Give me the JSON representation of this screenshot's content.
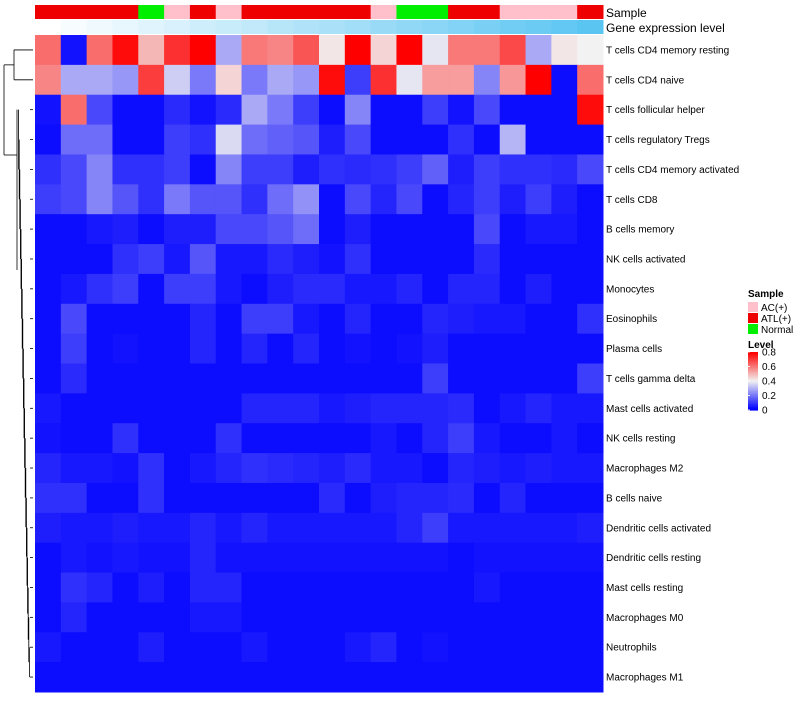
{
  "chart_data": {
    "type": "heatmap",
    "title": "",
    "annotation_labels": {
      "sample": "Sample",
      "expression": "Gene expression level"
    },
    "sample_groups": [
      "ATL(+)",
      "ATL(+)",
      "ATL(+)",
      "ATL(+)",
      "Normal",
      "AC(+)",
      "ATL(+)",
      "AC(+)",
      "ATL(+)",
      "ATL(+)",
      "ATL(+)",
      "ATL(+)",
      "ATL(+)",
      "AC(+)",
      "Normal",
      "Normal",
      "ATL(+)",
      "ATL(+)",
      "AC(+)",
      "AC(+)",
      "AC(+)",
      "ATL(+)"
    ],
    "expression_levels": [
      0.0,
      0.05,
      0.1,
      0.14,
      0.19,
      0.24,
      0.29,
      0.33,
      0.38,
      0.43,
      0.48,
      0.52,
      0.57,
      0.62,
      0.67,
      0.71,
      0.76,
      0.81,
      0.86,
      0.9,
      0.95,
      1.0
    ],
    "rows": [
      "T cells CD4 memory resting",
      "T cells CD4 naive",
      "T cells follicular helper",
      "T cells regulatory  Tregs",
      "T cells CD4 memory activated",
      "T cells CD8",
      "B cells memory",
      "NK cells activated",
      "Monocytes",
      "Eosinophils",
      "Plasma cells",
      "T cells gamma delta",
      "Mast cells activated",
      "NK cells resting",
      "Macrophages M2",
      "B cells naive",
      "Dendritic cells activated",
      "Dendritic cells resting",
      "Mast cells resting",
      "Macrophages M0",
      "Neutrophils",
      "Macrophages M1"
    ],
    "values": [
      [
        0.62,
        0.03,
        0.62,
        0.78,
        0.5,
        0.72,
        0.8,
        0.28,
        0.6,
        0.58,
        0.66,
        0.42,
        0.8,
        0.45,
        0.8,
        0.38,
        0.6,
        0.6,
        0.68,
        0.28,
        0.42,
        0.4
      ],
      [
        0.58,
        0.28,
        0.28,
        0.25,
        0.7,
        0.34,
        0.2,
        0.45,
        0.2,
        0.28,
        0.25,
        0.78,
        0.1,
        0.72,
        0.38,
        0.54,
        0.54,
        0.22,
        0.55,
        0.8,
        0.02,
        0.62
      ],
      [
        0.03,
        0.62,
        0.12,
        0.02,
        0.02,
        0.07,
        0.03,
        0.07,
        0.28,
        0.2,
        0.1,
        0.02,
        0.22,
        0.02,
        0.02,
        0.1,
        0.03,
        0.12,
        0.02,
        0.02,
        0.02,
        0.78
      ],
      [
        0.02,
        0.18,
        0.18,
        0.02,
        0.02,
        0.1,
        0.08,
        0.36,
        0.18,
        0.16,
        0.14,
        0.05,
        0.12,
        0.02,
        0.02,
        0.02,
        0.08,
        0.02,
        0.3,
        0.02,
        0.02,
        0.02
      ],
      [
        0.08,
        0.12,
        0.22,
        0.08,
        0.08,
        0.1,
        0.02,
        0.22,
        0.1,
        0.1,
        0.05,
        0.08,
        0.07,
        0.08,
        0.1,
        0.16,
        0.05,
        0.1,
        0.08,
        0.08,
        0.07,
        0.12
      ],
      [
        0.1,
        0.12,
        0.22,
        0.14,
        0.08,
        0.2,
        0.14,
        0.14,
        0.08,
        0.18,
        0.24,
        0.02,
        0.12,
        0.06,
        0.12,
        0.02,
        0.06,
        0.1,
        0.05,
        0.1,
        0.05,
        0.02
      ],
      [
        0.02,
        0.02,
        0.04,
        0.05,
        0.02,
        0.05,
        0.05,
        0.12,
        0.12,
        0.14,
        0.18,
        0.02,
        0.05,
        0.02,
        0.02,
        0.02,
        0.02,
        0.12,
        0.02,
        0.04,
        0.04,
        0.02
      ],
      [
        0.02,
        0.02,
        0.02,
        0.08,
        0.1,
        0.04,
        0.14,
        0.04,
        0.04,
        0.07,
        0.05,
        0.03,
        0.08,
        0.02,
        0.02,
        0.02,
        0.02,
        0.07,
        0.02,
        0.02,
        0.02,
        0.02
      ],
      [
        0.02,
        0.04,
        0.08,
        0.1,
        0.02,
        0.1,
        0.1,
        0.04,
        0.02,
        0.05,
        0.07,
        0.07,
        0.04,
        0.04,
        0.06,
        0.02,
        0.06,
        0.06,
        0.02,
        0.05,
        0.02,
        0.02
      ],
      [
        0.02,
        0.12,
        0.02,
        0.02,
        0.02,
        0.02,
        0.06,
        0.02,
        0.1,
        0.1,
        0.04,
        0.02,
        0.06,
        0.02,
        0.02,
        0.06,
        0.05,
        0.04,
        0.04,
        0.02,
        0.02,
        0.08
      ],
      [
        0.02,
        0.1,
        0.02,
        0.03,
        0.02,
        0.02,
        0.06,
        0.02,
        0.06,
        0.02,
        0.06,
        0.02,
        0.03,
        0.02,
        0.03,
        0.05,
        0.02,
        0.02,
        0.02,
        0.02,
        0.02,
        0.02
      ],
      [
        0.02,
        0.07,
        0.02,
        0.02,
        0.02,
        0.02,
        0.02,
        0.02,
        0.02,
        0.02,
        0.02,
        0.02,
        0.02,
        0.02,
        0.02,
        0.1,
        0.02,
        0.02,
        0.02,
        0.02,
        0.02,
        0.1
      ],
      [
        0.04,
        0.02,
        0.02,
        0.02,
        0.02,
        0.02,
        0.02,
        0.02,
        0.06,
        0.06,
        0.06,
        0.04,
        0.05,
        0.06,
        0.06,
        0.06,
        0.07,
        0.02,
        0.04,
        0.06,
        0.04,
        0.04
      ],
      [
        0.03,
        0.02,
        0.02,
        0.08,
        0.02,
        0.02,
        0.02,
        0.08,
        0.02,
        0.02,
        0.02,
        0.02,
        0.02,
        0.04,
        0.02,
        0.06,
        0.1,
        0.04,
        0.02,
        0.02,
        0.04,
        0.02
      ],
      [
        0.06,
        0.04,
        0.04,
        0.03,
        0.08,
        0.02,
        0.04,
        0.06,
        0.08,
        0.07,
        0.06,
        0.05,
        0.07,
        0.04,
        0.04,
        0.02,
        0.06,
        0.05,
        0.04,
        0.05,
        0.04,
        0.04
      ],
      [
        0.08,
        0.08,
        0.02,
        0.02,
        0.08,
        0.02,
        0.02,
        0.02,
        0.02,
        0.02,
        0.02,
        0.07,
        0.02,
        0.05,
        0.06,
        0.06,
        0.07,
        0.02,
        0.06,
        0.02,
        0.02,
        0.02
      ],
      [
        0.05,
        0.04,
        0.04,
        0.05,
        0.04,
        0.04,
        0.06,
        0.04,
        0.06,
        0.04,
        0.04,
        0.04,
        0.04,
        0.04,
        0.06,
        0.1,
        0.04,
        0.04,
        0.04,
        0.04,
        0.04,
        0.05
      ],
      [
        0.02,
        0.04,
        0.03,
        0.04,
        0.03,
        0.03,
        0.06,
        0.03,
        0.03,
        0.03,
        0.03,
        0.03,
        0.03,
        0.03,
        0.03,
        0.03,
        0.02,
        0.03,
        0.03,
        0.03,
        0.03,
        0.03
      ],
      [
        0.02,
        0.08,
        0.06,
        0.02,
        0.05,
        0.02,
        0.06,
        0.06,
        0.02,
        0.02,
        0.02,
        0.02,
        0.02,
        0.02,
        0.02,
        0.02,
        0.02,
        0.04,
        0.02,
        0.02,
        0.02,
        0.02
      ],
      [
        0.02,
        0.06,
        0.02,
        0.02,
        0.02,
        0.02,
        0.04,
        0.04,
        0.02,
        0.02,
        0.02,
        0.02,
        0.02,
        0.02,
        0.02,
        0.02,
        0.02,
        0.02,
        0.02,
        0.02,
        0.02,
        0.02
      ],
      [
        0.04,
        0.02,
        0.02,
        0.02,
        0.05,
        0.02,
        0.02,
        0.02,
        0.04,
        0.02,
        0.02,
        0.02,
        0.04,
        0.06,
        0.02,
        0.03,
        0.02,
        0.02,
        0.02,
        0.02,
        0.02,
        0.02
      ],
      [
        0.02,
        0.02,
        0.02,
        0.02,
        0.02,
        0.02,
        0.02,
        0.02,
        0.02,
        0.02,
        0.02,
        0.02,
        0.02,
        0.02,
        0.02,
        0.02,
        0.02,
        0.02,
        0.02,
        0.02,
        0.02,
        0.02
      ]
    ],
    "legend_sample": {
      "title": "Sample",
      "entries": [
        {
          "label": "AC(+)",
          "color": "#ffc0cb"
        },
        {
          "label": "ATL(+)",
          "color": "#ee0000"
        },
        {
          "label": "Normal",
          "color": "#00ee00"
        }
      ]
    },
    "legend_level": {
      "title": "Level",
      "ticks": [
        "0.8",
        "0.6",
        "0.4",
        "0.2",
        "0"
      ],
      "tick_values": [
        0.8,
        0.6,
        0.4,
        0.2,
        0.0
      ],
      "range": [
        0,
        0.8
      ]
    },
    "palette": {
      "low": "#0000ff",
      "mid": "#f2f2f2",
      "high": "#ff0000"
    },
    "expression_colors": {
      "low": "#ffffff",
      "high": "#5bc5f2"
    }
  }
}
